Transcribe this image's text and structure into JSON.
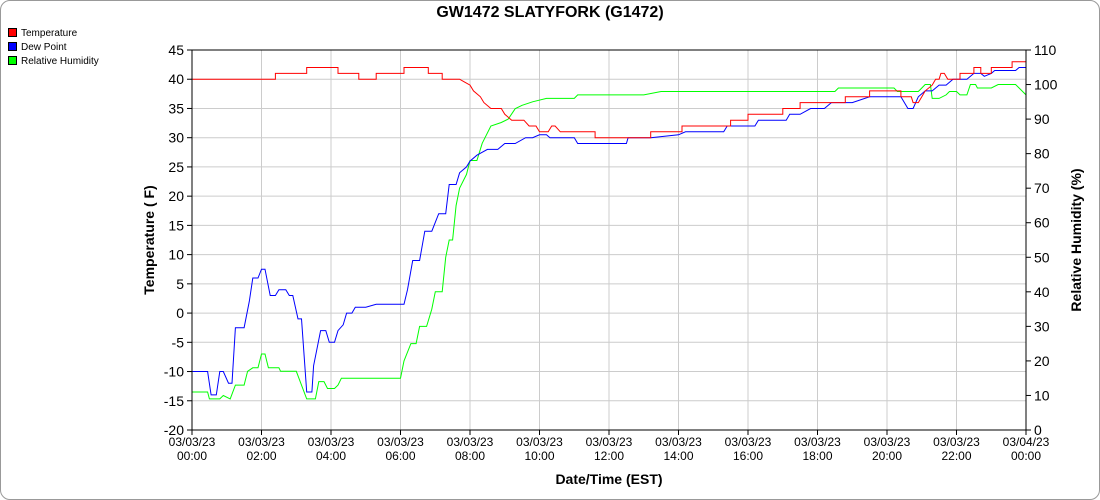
{
  "chart_data": {
    "type": "line",
    "title": "GW1472 SLATYFORK (G1472)",
    "xlabel": "Date/Time (EST)",
    "ylabel": "Temperature ( F)",
    "y2label": "Relative Humidity (%)",
    "grid": true,
    "legend_position": "top-left",
    "ylim": [
      -20,
      45
    ],
    "yticks": [
      45,
      40,
      35,
      30,
      25,
      20,
      15,
      10,
      5,
      0,
      -5,
      -10,
      -15,
      -20
    ],
    "y2lim": [
      0,
      110
    ],
    "y2ticks": [
      110,
      100,
      90,
      80,
      70,
      60,
      50,
      40,
      30,
      20,
      10,
      0
    ],
    "xlim": [
      0,
      24
    ],
    "xticks": [
      {
        "x": 0,
        "date": "03/03/23",
        "time": "00:00"
      },
      {
        "x": 2,
        "date": "03/03/23",
        "time": "02:00"
      },
      {
        "x": 4,
        "date": "03/03/23",
        "time": "04:00"
      },
      {
        "x": 6,
        "date": "03/03/23",
        "time": "06:00"
      },
      {
        "x": 8,
        "date": "03/03/23",
        "time": "08:00"
      },
      {
        "x": 10,
        "date": "03/03/23",
        "time": "10:00"
      },
      {
        "x": 12,
        "date": "03/03/23",
        "time": "12:00"
      },
      {
        "x": 14,
        "date": "03/03/23",
        "time": "14:00"
      },
      {
        "x": 16,
        "date": "03/03/23",
        "time": "16:00"
      },
      {
        "x": 18,
        "date": "03/03/23",
        "time": "18:00"
      },
      {
        "x": 20,
        "date": "03/03/23",
        "time": "20:00"
      },
      {
        "x": 22,
        "date": "03/03/23",
        "time": "22:00"
      },
      {
        "x": 24,
        "date": "03/04/23",
        "time": "00:00"
      }
    ],
    "series": [
      {
        "name": "Temperature",
        "color": "#ff0000",
        "axis": "left",
        "points": [
          [
            0,
            40
          ],
          [
            2.4,
            40
          ],
          [
            2.4,
            41
          ],
          [
            3.3,
            41
          ],
          [
            3.3,
            42
          ],
          [
            4.2,
            42
          ],
          [
            4.2,
            41
          ],
          [
            4.8,
            41
          ],
          [
            4.8,
            40
          ],
          [
            5.3,
            40
          ],
          [
            5.3,
            41
          ],
          [
            6.1,
            41
          ],
          [
            6.1,
            42
          ],
          [
            6.8,
            42
          ],
          [
            6.8,
            41
          ],
          [
            7.2,
            41
          ],
          [
            7.2,
            40
          ],
          [
            7.7,
            40
          ],
          [
            7.85,
            39.5
          ],
          [
            8.0,
            39
          ],
          [
            8.1,
            38
          ],
          [
            8.3,
            37
          ],
          [
            8.4,
            36
          ],
          [
            8.6,
            35
          ],
          [
            8.9,
            35
          ],
          [
            9.0,
            34
          ],
          [
            9.2,
            33
          ],
          [
            9.55,
            33
          ],
          [
            9.7,
            32
          ],
          [
            9.9,
            32
          ],
          [
            10.0,
            31
          ],
          [
            10.25,
            31
          ],
          [
            10.35,
            32
          ],
          [
            10.45,
            32
          ],
          [
            10.6,
            31
          ],
          [
            11.1,
            31
          ],
          [
            11.6,
            31
          ],
          [
            11.6,
            30
          ],
          [
            13.2,
            30
          ],
          [
            13.2,
            31
          ],
          [
            14.1,
            31
          ],
          [
            14.1,
            32
          ],
          [
            15.5,
            32
          ],
          [
            15.5,
            33
          ],
          [
            16.0,
            33
          ],
          [
            16.0,
            34
          ],
          [
            17.0,
            34
          ],
          [
            17.0,
            35
          ],
          [
            17.5,
            35
          ],
          [
            17.5,
            36
          ],
          [
            18.8,
            36
          ],
          [
            18.8,
            37
          ],
          [
            19.5,
            37
          ],
          [
            19.5,
            38
          ],
          [
            20.4,
            38
          ],
          [
            20.4,
            37
          ],
          [
            20.7,
            37
          ],
          [
            20.75,
            36
          ],
          [
            20.9,
            36
          ],
          [
            21.0,
            37
          ],
          [
            21.1,
            38
          ],
          [
            21.3,
            39
          ],
          [
            21.4,
            40
          ],
          [
            21.5,
            40
          ],
          [
            21.55,
            41
          ],
          [
            21.65,
            41
          ],
          [
            21.75,
            40
          ],
          [
            22.1,
            40
          ],
          [
            22.1,
            41
          ],
          [
            22.5,
            41
          ],
          [
            22.5,
            42
          ],
          [
            22.7,
            42
          ],
          [
            22.7,
            41
          ],
          [
            23.0,
            41
          ],
          [
            23.0,
            42
          ],
          [
            23.6,
            42
          ],
          [
            23.6,
            43
          ],
          [
            24.0,
            43
          ]
        ]
      },
      {
        "name": "Dew Point",
        "color": "#0000ff",
        "axis": "left",
        "points": [
          [
            0,
            -10
          ],
          [
            0.45,
            -10
          ],
          [
            0.55,
            -14
          ],
          [
            0.7,
            -14
          ],
          [
            0.8,
            -10
          ],
          [
            0.9,
            -10
          ],
          [
            1.05,
            -12
          ],
          [
            1.15,
            -12
          ],
          [
            1.25,
            -2.5
          ],
          [
            1.5,
            -2.5
          ],
          [
            1.65,
            2
          ],
          [
            1.75,
            6
          ],
          [
            1.9,
            6
          ],
          [
            2.0,
            7.5
          ],
          [
            2.1,
            7.5
          ],
          [
            2.25,
            3
          ],
          [
            2.4,
            3
          ],
          [
            2.5,
            4
          ],
          [
            2.7,
            4
          ],
          [
            2.8,
            3
          ],
          [
            2.9,
            3
          ],
          [
            3.05,
            -1
          ],
          [
            3.15,
            -1
          ],
          [
            3.3,
            -13.5
          ],
          [
            3.45,
            -13.5
          ],
          [
            3.5,
            -9
          ],
          [
            3.6,
            -6
          ],
          [
            3.7,
            -3
          ],
          [
            3.85,
            -3
          ],
          [
            3.95,
            -5
          ],
          [
            4.1,
            -5
          ],
          [
            4.2,
            -3
          ],
          [
            4.35,
            -2
          ],
          [
            4.45,
            0
          ],
          [
            4.6,
            0
          ],
          [
            4.7,
            1
          ],
          [
            5.0,
            1
          ],
          [
            5.3,
            1.5
          ],
          [
            5.6,
            1.5
          ],
          [
            6.1,
            1.5
          ],
          [
            6.2,
            4
          ],
          [
            6.35,
            9
          ],
          [
            6.55,
            9
          ],
          [
            6.7,
            14
          ],
          [
            6.9,
            14
          ],
          [
            7.1,
            17
          ],
          [
            7.3,
            17
          ],
          [
            7.4,
            22
          ],
          [
            7.6,
            22
          ],
          [
            7.7,
            24
          ],
          [
            7.9,
            25
          ],
          [
            8.0,
            26
          ],
          [
            8.2,
            27
          ],
          [
            8.5,
            28
          ],
          [
            8.8,
            28
          ],
          [
            9.0,
            29
          ],
          [
            9.3,
            29
          ],
          [
            9.6,
            30
          ],
          [
            9.8,
            30
          ],
          [
            10.0,
            30.5
          ],
          [
            10.2,
            30.5
          ],
          [
            10.3,
            30
          ],
          [
            10.6,
            30
          ],
          [
            11.0,
            30
          ],
          [
            11.1,
            29
          ],
          [
            12.0,
            29
          ],
          [
            12.5,
            29
          ],
          [
            12.55,
            30
          ],
          [
            13.2,
            30
          ],
          [
            14.0,
            30.5
          ],
          [
            14.2,
            31
          ],
          [
            15.3,
            31
          ],
          [
            15.4,
            32
          ],
          [
            16.2,
            32
          ],
          [
            16.3,
            33
          ],
          [
            17.1,
            33
          ],
          [
            17.2,
            34
          ],
          [
            17.5,
            34
          ],
          [
            17.8,
            35
          ],
          [
            18.2,
            35
          ],
          [
            18.4,
            36
          ],
          [
            19.0,
            36
          ],
          [
            19.5,
            37
          ],
          [
            20.4,
            37
          ],
          [
            20.6,
            35
          ],
          [
            20.75,
            35
          ],
          [
            20.9,
            37
          ],
          [
            21.1,
            38
          ],
          [
            21.3,
            38
          ],
          [
            21.5,
            39
          ],
          [
            21.7,
            39
          ],
          [
            21.9,
            40
          ],
          [
            22.3,
            40
          ],
          [
            22.5,
            41
          ],
          [
            22.7,
            41
          ],
          [
            22.8,
            40.5
          ],
          [
            23.0,
            41
          ],
          [
            23.1,
            41.5
          ],
          [
            23.7,
            41.5
          ],
          [
            23.8,
            42
          ],
          [
            24.0,
            42
          ]
        ]
      },
      {
        "name": "Relative Humidity",
        "color": "#00ff00",
        "axis": "right",
        "points": [
          [
            0,
            11
          ],
          [
            0.45,
            11
          ],
          [
            0.5,
            9
          ],
          [
            0.8,
            9
          ],
          [
            0.9,
            10
          ],
          [
            1.1,
            9
          ],
          [
            1.25,
            13
          ],
          [
            1.5,
            13
          ],
          [
            1.6,
            17
          ],
          [
            1.75,
            18
          ],
          [
            1.9,
            18
          ],
          [
            2.0,
            22
          ],
          [
            2.1,
            22
          ],
          [
            2.2,
            18
          ],
          [
            2.5,
            18
          ],
          [
            2.55,
            17
          ],
          [
            3.0,
            17
          ],
          [
            3.3,
            9
          ],
          [
            3.55,
            9
          ],
          [
            3.65,
            14
          ],
          [
            3.8,
            14
          ],
          [
            3.9,
            12
          ],
          [
            4.1,
            12
          ],
          [
            4.2,
            13
          ],
          [
            4.3,
            15
          ],
          [
            4.9,
            15
          ],
          [
            5.5,
            15
          ],
          [
            6.0,
            15
          ],
          [
            6.1,
            20
          ],
          [
            6.3,
            25
          ],
          [
            6.45,
            25
          ],
          [
            6.55,
            30
          ],
          [
            6.75,
            30
          ],
          [
            6.9,
            35
          ],
          [
            7.0,
            40
          ],
          [
            7.2,
            40
          ],
          [
            7.3,
            50
          ],
          [
            7.4,
            55
          ],
          [
            7.5,
            55
          ],
          [
            7.6,
            65
          ],
          [
            7.7,
            70
          ],
          [
            7.9,
            74
          ],
          [
            8.0,
            78
          ],
          [
            8.2,
            78
          ],
          [
            8.35,
            83
          ],
          [
            8.6,
            88
          ],
          [
            8.9,
            89
          ],
          [
            9.1,
            90
          ],
          [
            9.3,
            93
          ],
          [
            9.5,
            94
          ],
          [
            9.8,
            95
          ],
          [
            10.2,
            96
          ],
          [
            11.0,
            96
          ],
          [
            11.1,
            97
          ],
          [
            12.5,
            97
          ],
          [
            13.0,
            97
          ],
          [
            13.5,
            98
          ],
          [
            18.5,
            98
          ],
          [
            18.6,
            99
          ],
          [
            20.2,
            99
          ],
          [
            20.3,
            98
          ],
          [
            20.9,
            98
          ],
          [
            21.0,
            99
          ],
          [
            21.1,
            100
          ],
          [
            21.25,
            100
          ],
          [
            21.3,
            96
          ],
          [
            21.5,
            96
          ],
          [
            21.7,
            97
          ],
          [
            21.8,
            98
          ],
          [
            22.0,
            98
          ],
          [
            22.1,
            97
          ],
          [
            22.3,
            97
          ],
          [
            22.4,
            100
          ],
          [
            22.55,
            100
          ],
          [
            22.6,
            99
          ],
          [
            23.0,
            99
          ],
          [
            23.2,
            100
          ],
          [
            23.7,
            100
          ],
          [
            23.8,
            99
          ],
          [
            24.0,
            97
          ]
        ]
      }
    ]
  }
}
